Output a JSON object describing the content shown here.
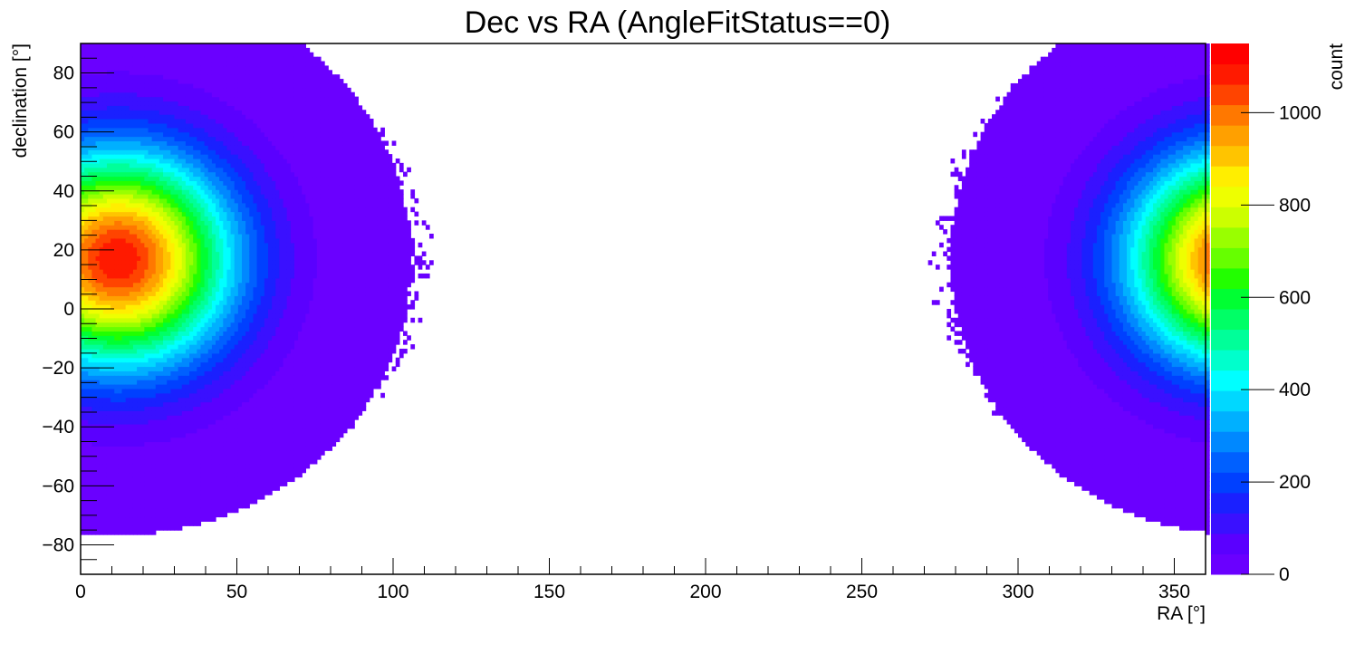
{
  "chart_data": {
    "type": "heatmap",
    "title": "Dec vs RA (AngleFitStatus==0)",
    "xlabel": "RA [°]",
    "ylabel": "declination [°]",
    "zlabel": "count",
    "xlim": [
      0,
      360
    ],
    "ylim": [
      -90,
      90
    ],
    "zlim": [
      0,
      1150
    ],
    "x_ticks": [
      0,
      50,
      100,
      150,
      200,
      250,
      300,
      350
    ],
    "y_ticks": [
      -80,
      -60,
      -40,
      -20,
      0,
      20,
      40,
      60,
      80
    ],
    "z_ticks": [
      0,
      200,
      400,
      600,
      800,
      1000
    ],
    "x_tick_labels": [
      "0",
      "50",
      "100",
      "150",
      "200",
      "250",
      "300",
      "350"
    ],
    "y_tick_labels": [
      "−80",
      "−60",
      "−40",
      "−20",
      "0",
      "20",
      "40",
      "60",
      "80"
    ],
    "z_tick_labels": [
      "0",
      "200",
      "400",
      "600",
      "800",
      "1000"
    ],
    "hotspot": {
      "ra": 12,
      "dec": 17,
      "peak_count": 1100
    },
    "populated_region": "dense band wrapping RA 0° (RA > ~290° or < ~100°), sparse edges; empty region centred near RA 200°, Dec 20°",
    "palette": [
      "#6a00ff",
      "#5a00ff",
      "#3a10ff",
      "#1a20ff",
      "#0040ff",
      "#0060ff",
      "#0088ff",
      "#00b0ff",
      "#00d8ff",
      "#00ffff",
      "#00ffcc",
      "#00ff99",
      "#00ff66",
      "#00ff33",
      "#22ff00",
      "#66ff00",
      "#99ff00",
      "#ccff00",
      "#eeff00",
      "#ffee00",
      "#ffc400",
      "#ffa000",
      "#ff7800",
      "#ff4400",
      "#ff1a00",
      "#ff0000"
    ],
    "grid": false,
    "legend": "color-bar-right"
  }
}
